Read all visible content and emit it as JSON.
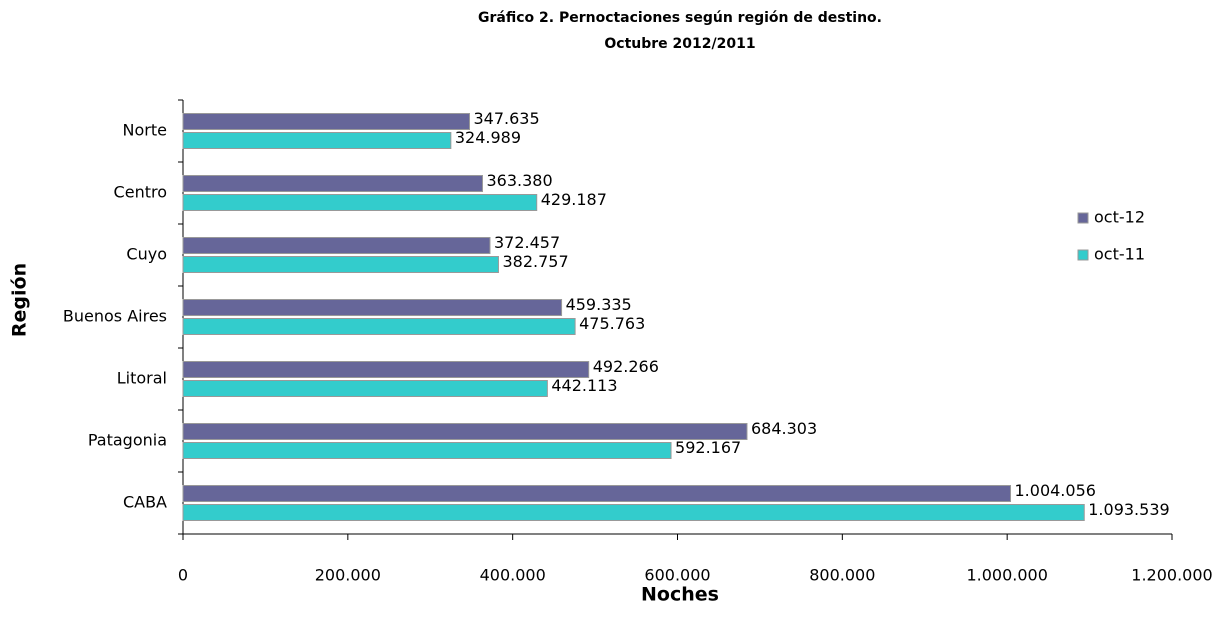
{
  "chart_data": {
    "type": "bar",
    "orientation": "horizontal",
    "title": "Gráfico 2. Pernoctaciones según región de destino.",
    "subtitle": "Octubre 2012/2011",
    "x_label": "Noches",
    "y_label": "Región",
    "categories": [
      "Norte",
      "Centro",
      "Cuyo",
      "Buenos Aires",
      "Litoral",
      "Patagonia",
      "CABA"
    ],
    "series": [
      {
        "name": "oct-12",
        "color": "#666699",
        "values": [
          347635,
          363380,
          372457,
          459335,
          492266,
          684303,
          1004056
        ],
        "value_labels": [
          "347.635",
          "363.380",
          "372.457",
          "459.335",
          "492.266",
          "684.303",
          "1.004.056"
        ]
      },
      {
        "name": "oct-11",
        "color": "#33cccc",
        "values": [
          324989,
          429187,
          382757,
          475763,
          442113,
          592167,
          1093539
        ],
        "value_labels": [
          "324.989",
          "429.187",
          "382.757",
          "475.763",
          "442.113",
          "592.167",
          "1.093.539"
        ]
      }
    ],
    "xlim": [
      0,
      1200000
    ],
    "xticks": [
      0,
      {
        "value": 200000,
        "label": "200.000"
      },
      {
        "value": 400000,
        "label": "400.000"
      },
      {
        "value": 600000,
        "label": "600.000"
      },
      {
        "value": 800000,
        "label": "800.000"
      },
      {
        "value": 1000000,
        "label": "1.000.000"
      },
      {
        "value": 1200000,
        "label": "1.200.000"
      }
    ],
    "grid": false,
    "legend": "right"
  }
}
